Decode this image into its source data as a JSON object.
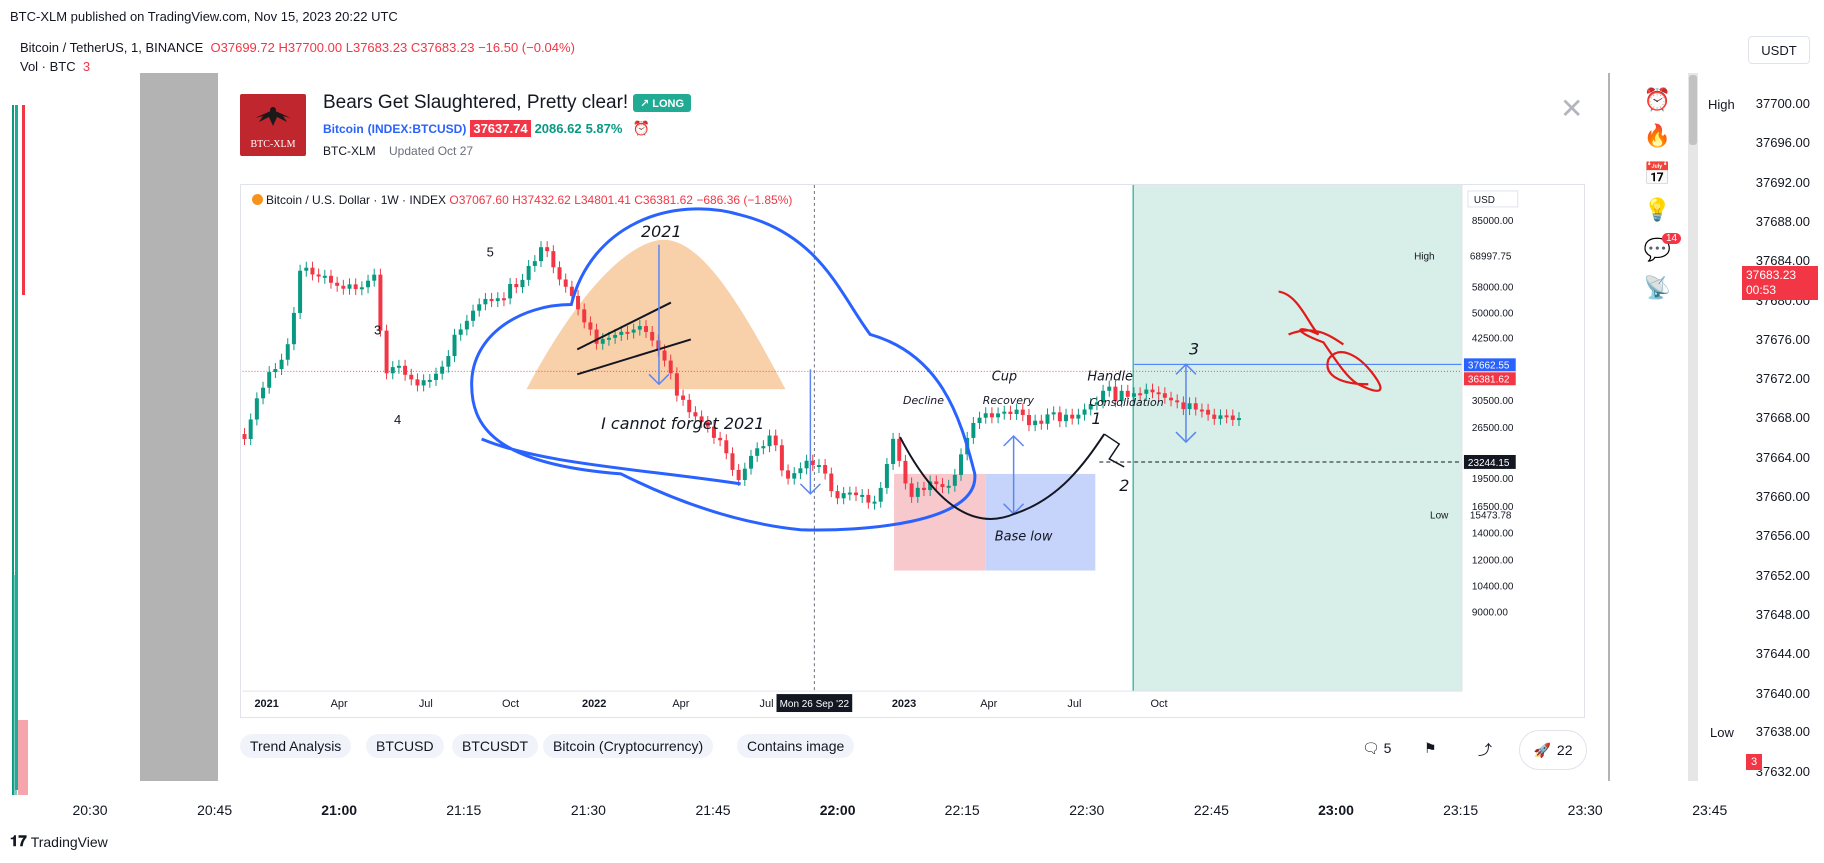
{
  "header": {
    "published_line": "BTC-XLM published on TradingView.com, Nov 15, 2023 20:22 UTC",
    "symbol": "Bitcoin / TetherUS, 1, BINANCE",
    "ohlc_o": "O37699.72",
    "ohlc_h": "H37700.00",
    "ohlc_l": "L37683.23",
    "ohlc_c": "C37683.23",
    "ohlc_change": "−16.50 (−0.04%)",
    "vol_label": "Vol · BTC",
    "vol_value": "3",
    "currency": "USDT"
  },
  "right_scale": {
    "labels": [
      "37700.00",
      "37696.00",
      "37692.00",
      "37688.00",
      "37684.00",
      "37680.00",
      "37676.00",
      "37672.00",
      "37668.00",
      "37664.00",
      "37660.00",
      "37656.00",
      "37652.00",
      "37648.00",
      "37644.00",
      "37640.00",
      "37636.00",
      "37632.00"
    ],
    "high_label": "High",
    "high_value": "37700.00",
    "current_price": "37683.23",
    "countdown": "00:53",
    "low_label": "Low",
    "low_value": "37638.00",
    "vol_badge": "3"
  },
  "time_axis": {
    "labels": [
      {
        "text": "20:30",
        "bold": false
      },
      {
        "text": "20:45",
        "bold": false
      },
      {
        "text": "21:00",
        "bold": true
      },
      {
        "text": "21:15",
        "bold": false
      },
      {
        "text": "21:30",
        "bold": false
      },
      {
        "text": "21:45",
        "bold": false
      },
      {
        "text": "22:00",
        "bold": true
      },
      {
        "text": "22:15",
        "bold": false
      },
      {
        "text": "22:30",
        "bold": false
      },
      {
        "text": "22:45",
        "bold": false
      },
      {
        "text": "23:00",
        "bold": true
      },
      {
        "text": "23:15",
        "bold": false
      },
      {
        "text": "23:30",
        "bold": false
      },
      {
        "text": "23:45",
        "bold": false
      }
    ]
  },
  "idea": {
    "title": "Bears Get Slaughtered, Pretty clear!",
    "badge": "↗ LONG",
    "symbol_name": "Bitcoin",
    "symbol_ticker": "(INDEX:BTCUSD)",
    "price": "37637.74",
    "change": "2086.62",
    "change_pct": "5.87%",
    "author": "BTC-XLM",
    "updated": "Updated Oct 27",
    "avatar_text": "BTC-XLM"
  },
  "inner_chart": {
    "legend_symbol": "Bitcoin / U.S. Dollar · 1W · INDEX",
    "legend_o": "O37067.60",
    "legend_h": "H37432.62",
    "legend_l": "L34801.41",
    "legend_c": "C36381.62",
    "legend_change": "−686.36 (−1.85%)",
    "currency": "USD",
    "scale_labels": [
      "85000.00",
      "68997.75",
      "58000.00",
      "50000.00",
      "42500.00",
      "37662.55",
      "36381.62",
      "30500.00",
      "26500.00",
      "23244.15",
      "19500.00",
      "16500.00",
      "15473.78",
      "14000.00",
      "12000.00",
      "10400.00",
      "9000.00"
    ],
    "high_label": "High",
    "high_value": "68997.75",
    "low_label": "Low",
    "low_value": "15473.78",
    "price_tag_blue": "37662.55",
    "price_tag_red": "36381.62",
    "price_tag_black": "23244.15",
    "time_labels": [
      "2021",
      "Apr",
      "Jul",
      "Oct",
      "2022",
      "Apr",
      "Jul",
      "Mon 26 Sep '22",
      "2023",
      "Apr",
      "Jul",
      "Oct"
    ],
    "annotations": {
      "year_2021": "2021",
      "cannot_forget": "I cannot forget 2021",
      "wave_5": "5",
      "wave_3": "3",
      "wave_4": "4",
      "decline": "Decline",
      "cup": "Cup",
      "recovery": "Recovery",
      "handle": "Handle",
      "consolidation": "Consolidation",
      "base_low": "Base low",
      "num_1": "1",
      "num_2": "2",
      "num_3": "3"
    }
  },
  "tags": [
    "Trend Analysis",
    "BTCUSD",
    "BTCUSDT",
    "Bitcoin (Cryptocurrency)",
    "Contains image"
  ],
  "footer": {
    "comments_count": "5",
    "boosts_count": "22",
    "brand": "TradingView",
    "side_badge": "14"
  }
}
